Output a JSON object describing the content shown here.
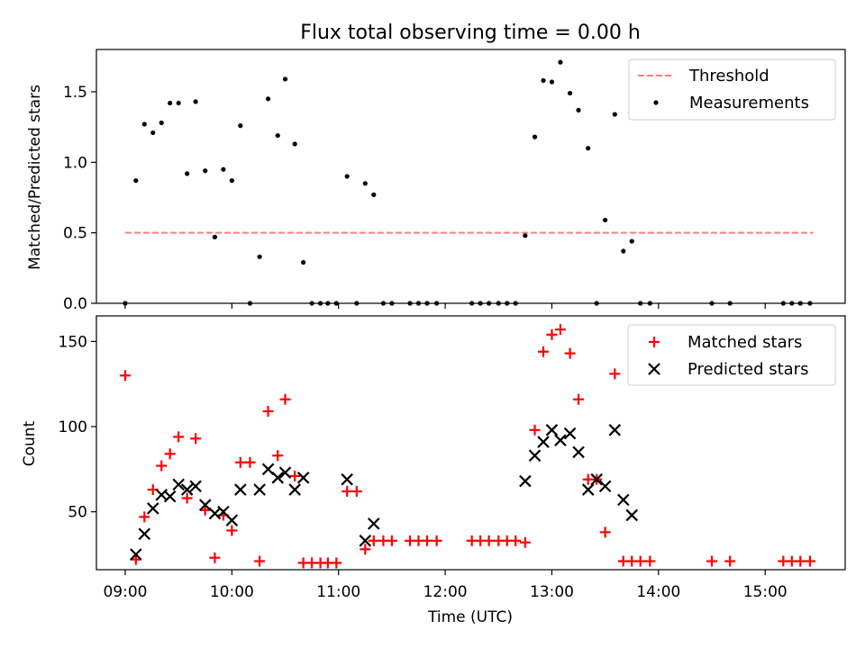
{
  "title": "Flux total observing time = 0.00 h",
  "xlabel": "Time (UTC)",
  "x_ticks": [
    {
      "t": 9,
      "label": "09:00"
    },
    {
      "t": 10,
      "label": "10:00"
    },
    {
      "t": 11,
      "label": "11:00"
    },
    {
      "t": 12,
      "label": "12:00"
    },
    {
      "t": 13,
      "label": "13:00"
    },
    {
      "t": 14,
      "label": "14:00"
    },
    {
      "t": 15,
      "label": "15:00"
    }
  ],
  "xlim": [
    8.73,
    15.75
  ],
  "chart_data": [
    {
      "type": "scatter",
      "ylabel": "Matched/Predicted stars",
      "ylim": [
        0,
        1.8
      ],
      "y_ticks": [
        {
          "v": 0,
          "label": "0.0"
        },
        {
          "v": 0.5,
          "label": "0.5"
        },
        {
          "v": 1.0,
          "label": "1.0"
        },
        {
          "v": 1.5,
          "label": "1.5"
        }
      ],
      "legend": {
        "position": "top-right",
        "entries": [
          "Threshold",
          "Measurements"
        ]
      },
      "threshold": {
        "name": "Threshold",
        "value": 0.5,
        "x_range": [
          9.0,
          15.45
        ],
        "color": "#ff7f7f",
        "style": "dashed"
      },
      "series": [
        {
          "name": "Measurements",
          "color": "#000000",
          "marker": "dot",
          "points": [
            [
              9.0,
              0.0
            ],
            [
              9.1,
              0.87
            ],
            [
              9.18,
              1.27
            ],
            [
              9.26,
              1.21
            ],
            [
              9.34,
              1.28
            ],
            [
              9.42,
              1.42
            ],
            [
              9.5,
              1.42
            ],
            [
              9.58,
              0.92
            ],
            [
              9.66,
              1.43
            ],
            [
              9.75,
              0.94
            ],
            [
              9.84,
              0.47
            ],
            [
              9.92,
              0.95
            ],
            [
              10.0,
              0.87
            ],
            [
              10.08,
              1.26
            ],
            [
              10.17,
              0.0
            ],
            [
              10.26,
              0.33
            ],
            [
              10.34,
              1.45
            ],
            [
              10.43,
              1.19
            ],
            [
              10.5,
              1.59
            ],
            [
              10.59,
              1.13
            ],
            [
              10.67,
              0.29
            ],
            [
              10.75,
              0.0
            ],
            [
              10.83,
              0.0
            ],
            [
              10.9,
              0.0
            ],
            [
              10.98,
              0.0
            ],
            [
              11.08,
              0.9
            ],
            [
              11.17,
              0.0
            ],
            [
              11.25,
              0.85
            ],
            [
              11.33,
              0.77
            ],
            [
              11.42,
              0.0
            ],
            [
              11.5,
              0.0
            ],
            [
              11.67,
              0.0
            ],
            [
              11.75,
              0.0
            ],
            [
              11.83,
              0.0
            ],
            [
              11.92,
              0.0
            ],
            [
              12.25,
              0.0
            ],
            [
              12.33,
              0.0
            ],
            [
              12.41,
              0.0
            ],
            [
              12.5,
              0.0
            ],
            [
              12.58,
              0.0
            ],
            [
              12.66,
              0.0
            ],
            [
              12.75,
              0.48
            ],
            [
              12.84,
              1.18
            ],
            [
              12.92,
              1.58
            ],
            [
              13.0,
              1.57
            ],
            [
              13.08,
              1.71
            ],
            [
              13.17,
              1.49
            ],
            [
              13.25,
              1.37
            ],
            [
              13.34,
              1.1
            ],
            [
              13.42,
              0.0
            ],
            [
              13.5,
              0.59
            ],
            [
              13.59,
              1.34
            ],
            [
              13.67,
              0.37
            ],
            [
              13.75,
              0.44
            ],
            [
              13.83,
              0.0
            ],
            [
              13.92,
              0.0
            ],
            [
              14.5,
              0.0
            ],
            [
              14.67,
              0.0
            ],
            [
              15.17,
              0.0
            ],
            [
              15.25,
              0.0
            ],
            [
              15.33,
              0.0
            ],
            [
              15.42,
              0.0
            ]
          ]
        }
      ]
    },
    {
      "type": "scatter",
      "ylabel": "Count",
      "ylim": [
        16,
        165
      ],
      "y_ticks": [
        {
          "v": 50,
          "label": "50"
        },
        {
          "v": 100,
          "label": "100"
        },
        {
          "v": 150,
          "label": "150"
        }
      ],
      "legend": {
        "position": "top-right",
        "entries": [
          "Matched stars",
          "Predicted stars"
        ]
      },
      "series": [
        {
          "name": "Matched stars",
          "color": "#ff0000",
          "marker": "plus",
          "points": [
            [
              9.0,
              130
            ],
            [
              9.1,
              22
            ],
            [
              9.18,
              47
            ],
            [
              9.26,
              63
            ],
            [
              9.34,
              77
            ],
            [
              9.42,
              84
            ],
            [
              9.5,
              94
            ],
            [
              9.58,
              58
            ],
            [
              9.66,
              93
            ],
            [
              9.75,
              51
            ],
            [
              9.84,
              23
            ],
            [
              9.92,
              48
            ],
            [
              10.0,
              39
            ],
            [
              10.08,
              79
            ],
            [
              10.17,
              79
            ],
            [
              10.26,
              21
            ],
            [
              10.34,
              109
            ],
            [
              10.43,
              83
            ],
            [
              10.5,
              116
            ],
            [
              10.59,
              71
            ],
            [
              10.67,
              20
            ],
            [
              10.75,
              20
            ],
            [
              10.83,
              20
            ],
            [
              10.9,
              20
            ],
            [
              10.98,
              20
            ],
            [
              11.08,
              62
            ],
            [
              11.17,
              62
            ],
            [
              11.25,
              28
            ],
            [
              11.33,
              33
            ],
            [
              11.42,
              33
            ],
            [
              11.5,
              33
            ],
            [
              11.67,
              33
            ],
            [
              11.75,
              33
            ],
            [
              11.83,
              33
            ],
            [
              11.92,
              33
            ],
            [
              12.25,
              33
            ],
            [
              12.33,
              33
            ],
            [
              12.41,
              33
            ],
            [
              12.5,
              33
            ],
            [
              12.58,
              33
            ],
            [
              12.66,
              33
            ],
            [
              12.75,
              32
            ],
            [
              12.84,
              98
            ],
            [
              12.92,
              144
            ],
            [
              13.0,
              154
            ],
            [
              13.08,
              157
            ],
            [
              13.17,
              143
            ],
            [
              13.25,
              116
            ],
            [
              13.34,
              69
            ],
            [
              13.42,
              69
            ],
            [
              13.5,
              38
            ],
            [
              13.59,
              131
            ],
            [
              13.67,
              21
            ],
            [
              13.75,
              21
            ],
            [
              13.83,
              21
            ],
            [
              13.92,
              21
            ],
            [
              14.5,
              21
            ],
            [
              14.67,
              21
            ],
            [
              15.17,
              21
            ],
            [
              15.25,
              21
            ],
            [
              15.33,
              21
            ],
            [
              15.42,
              21
            ]
          ]
        },
        {
          "name": "Predicted stars",
          "color": "#000000",
          "marker": "x",
          "points": [
            [
              9.1,
              25
            ],
            [
              9.18,
              37
            ],
            [
              9.26,
              52
            ],
            [
              9.34,
              60
            ],
            [
              9.42,
              59
            ],
            [
              9.5,
              66
            ],
            [
              9.58,
              63
            ],
            [
              9.66,
              65
            ],
            [
              9.75,
              54
            ],
            [
              9.84,
              49
            ],
            [
              9.92,
              50
            ],
            [
              10.0,
              45
            ],
            [
              10.08,
              63
            ],
            [
              10.26,
              63
            ],
            [
              10.34,
              75
            ],
            [
              10.43,
              70
            ],
            [
              10.5,
              73
            ],
            [
              10.59,
              63
            ],
            [
              10.67,
              70
            ],
            [
              11.08,
              69
            ],
            [
              11.25,
              33
            ],
            [
              11.33,
              43
            ],
            [
              12.75,
              68
            ],
            [
              12.84,
              83
            ],
            [
              12.92,
              91
            ],
            [
              13.0,
              98
            ],
            [
              13.08,
              92
            ],
            [
              13.17,
              96
            ],
            [
              13.25,
              85
            ],
            [
              13.34,
              63
            ],
            [
              13.42,
              69
            ],
            [
              13.5,
              65
            ],
            [
              13.59,
              98
            ],
            [
              13.67,
              57
            ],
            [
              13.75,
              48
            ]
          ]
        }
      ]
    }
  ]
}
